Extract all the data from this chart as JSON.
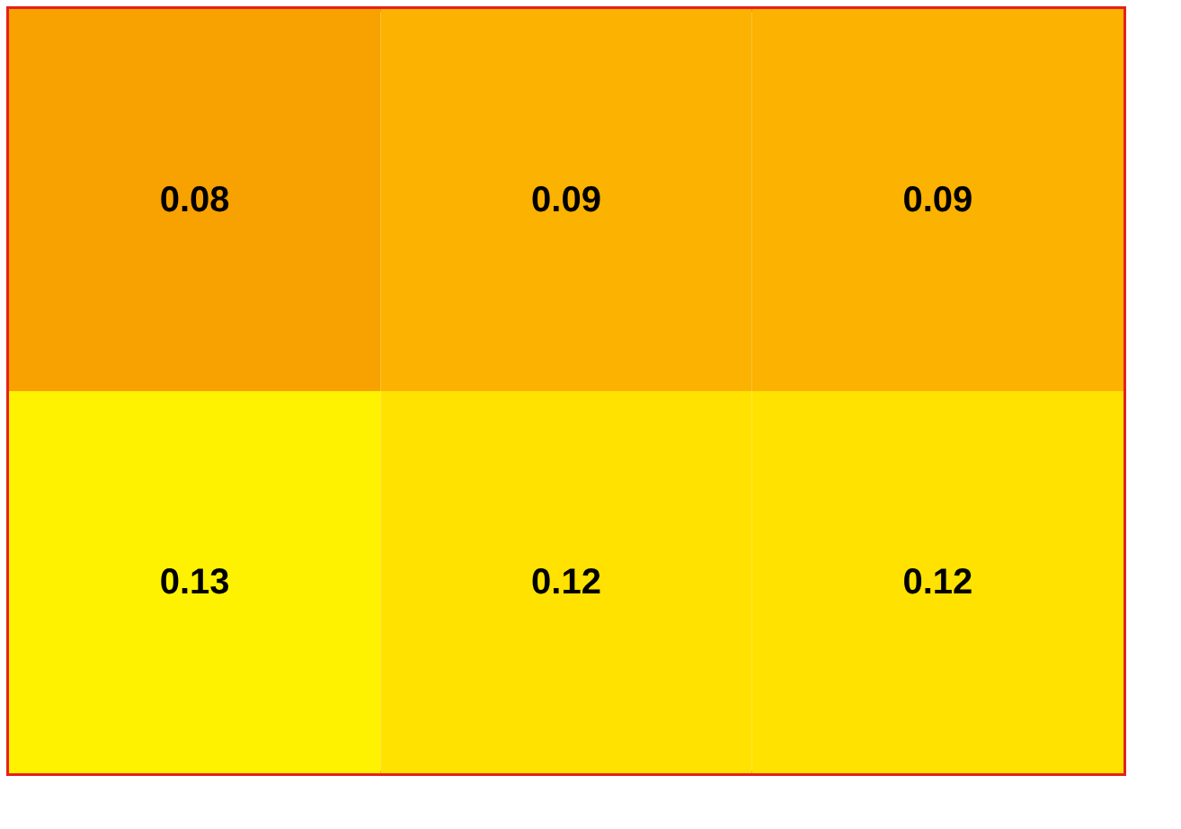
{
  "chart_data": {
    "type": "heatmap",
    "categories": [
      null,
      null,
      null
    ],
    "y_categories": [
      null,
      null
    ],
    "cells": [
      [
        0.08,
        0.09,
        0.09
      ],
      [
        0.13,
        0.12,
        0.12
      ]
    ],
    "data_labels": true,
    "tick_labels": false
  }
}
